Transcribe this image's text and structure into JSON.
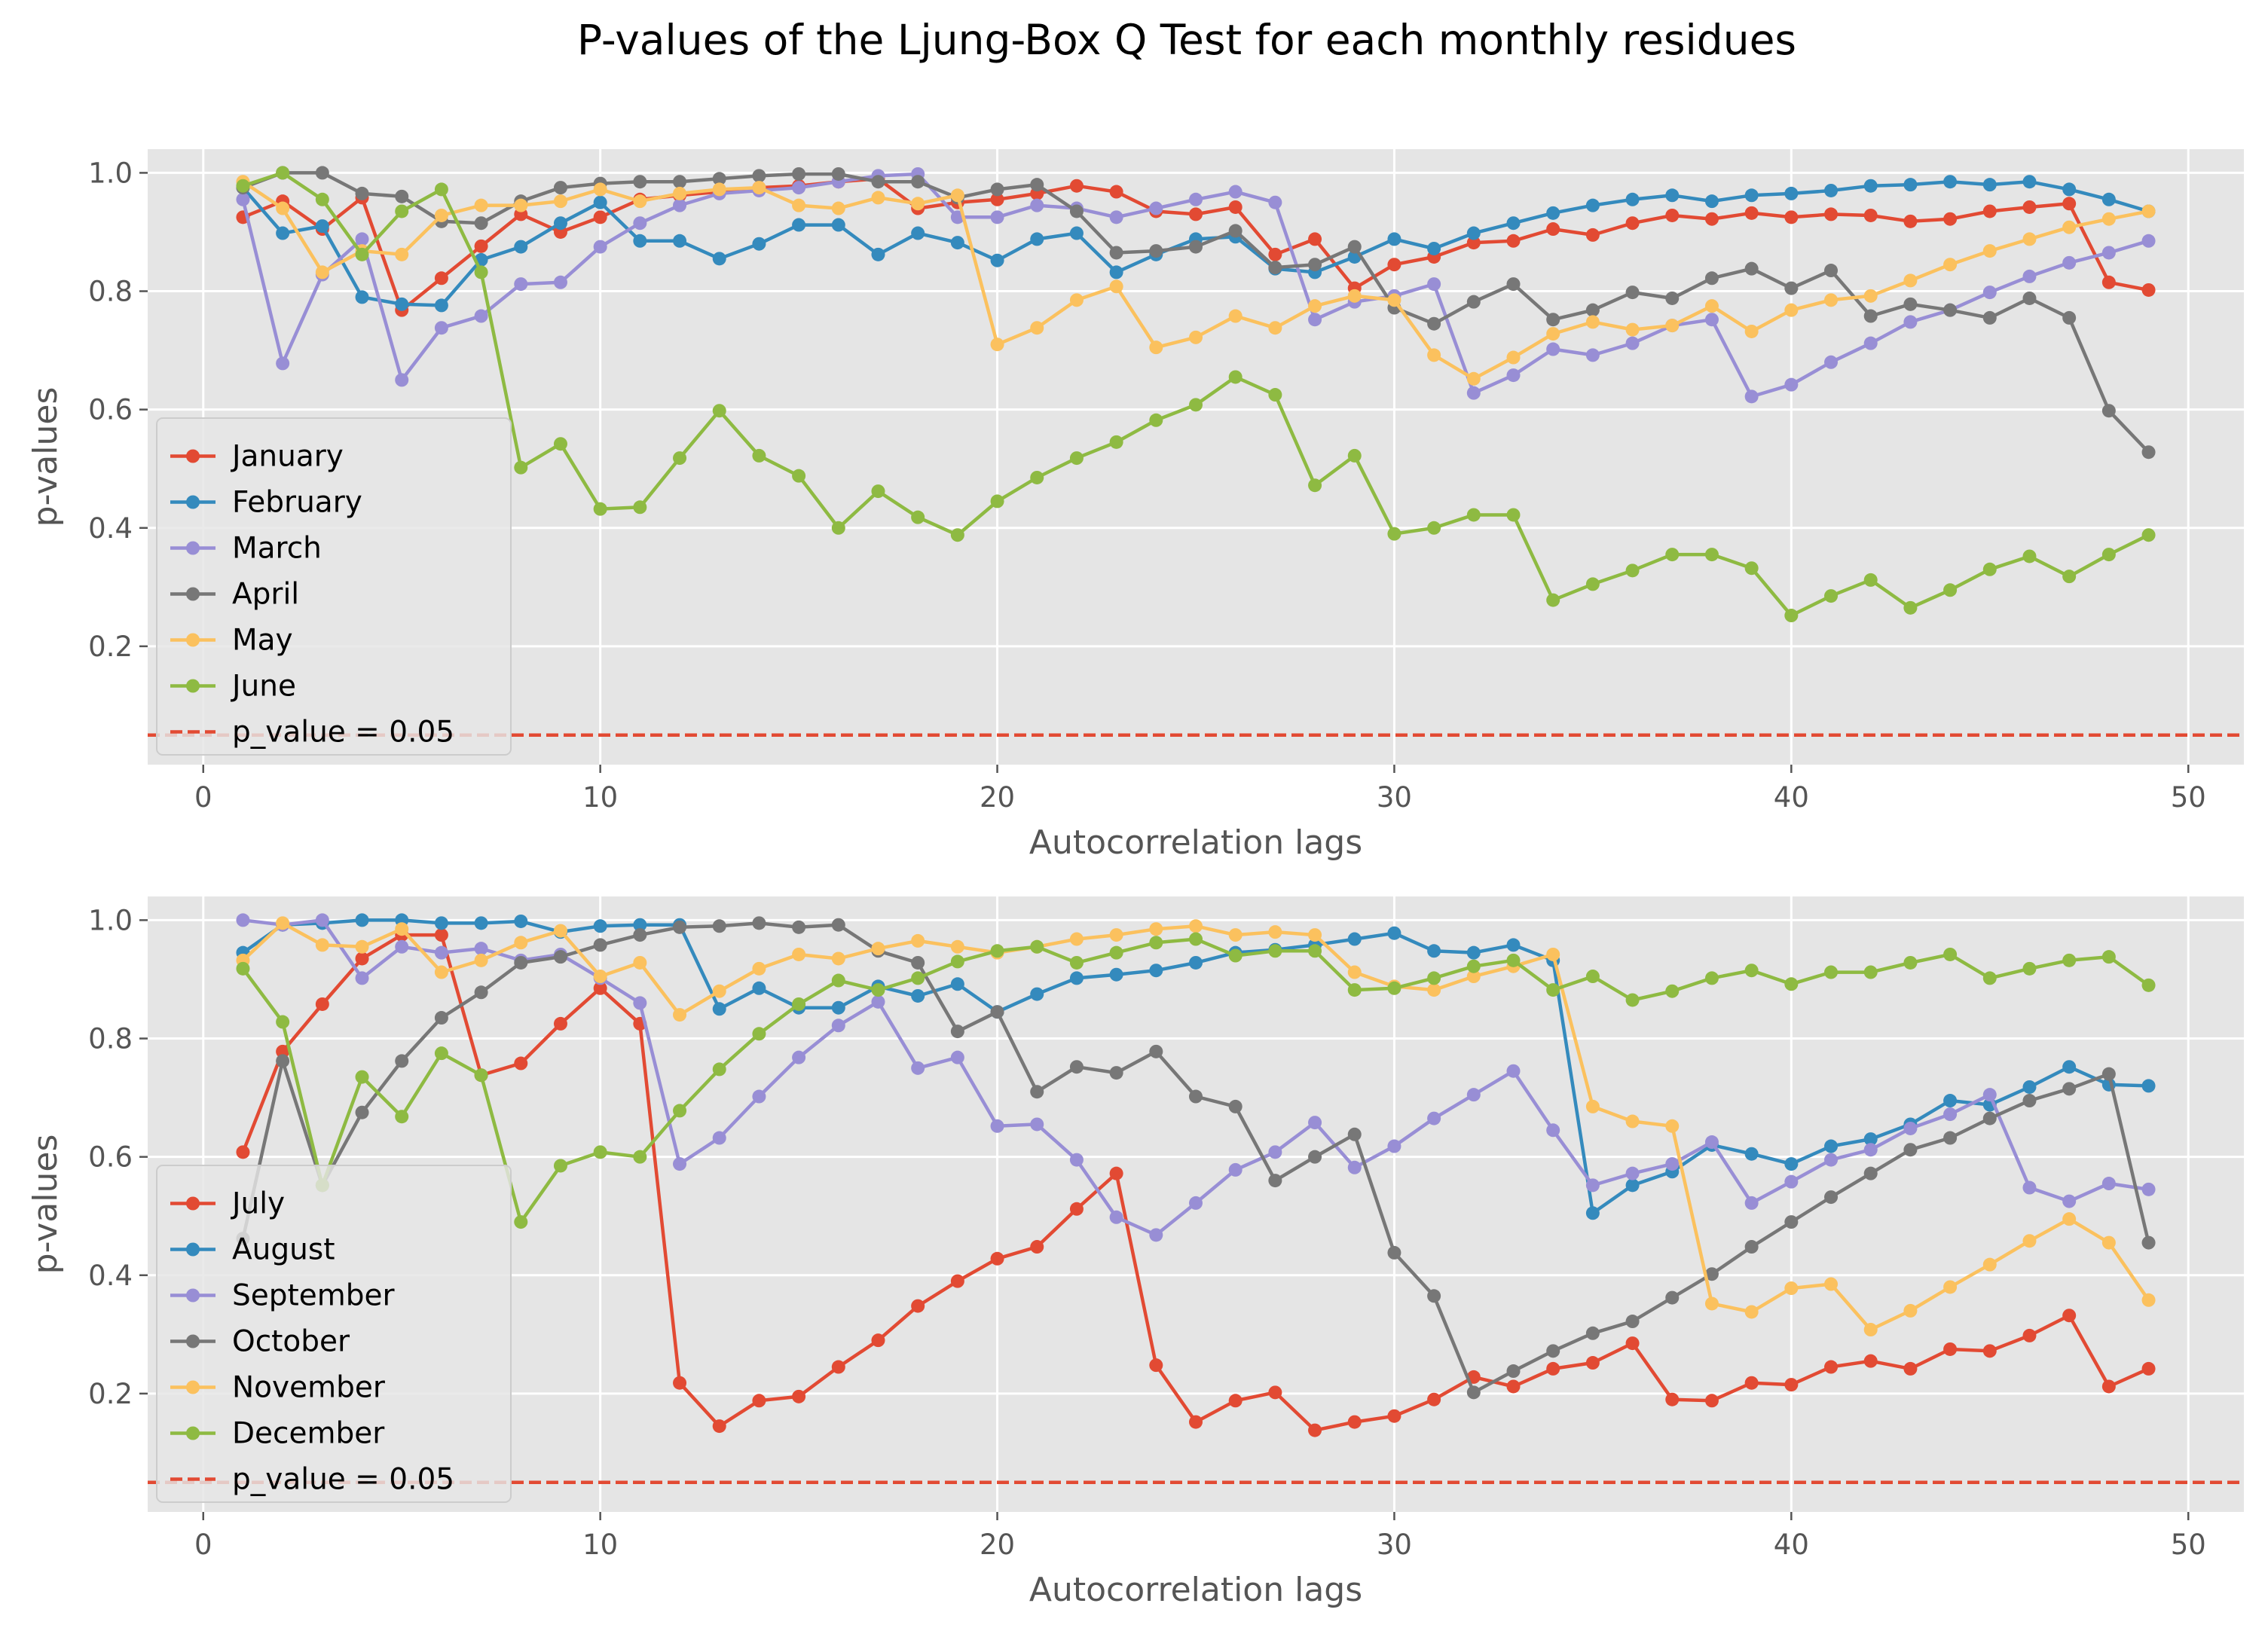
{
  "title": "P-values of the Ljung-Box Q Test for each monthly residues",
  "chart_data": [
    {
      "type": "line",
      "xlabel": "Autocorrelation lags",
      "ylabel": "p-values",
      "xlim": [
        -1.4,
        51.4
      ],
      "ylim": [
        0.0,
        1.04
      ],
      "xticks": [
        0,
        10,
        20,
        30,
        40,
        50
      ],
      "yticks": [
        0.2,
        0.4,
        0.6,
        0.8,
        1.0
      ],
      "grid": true,
      "legend_position": "lower-left",
      "threshold": {
        "label": "p_value = 0.05",
        "value": 0.05,
        "color": "#E24A33"
      },
      "series": [
        {
          "name": "January",
          "color": "#E24A33",
          "values": [
            0.925,
            0.952,
            0.905,
            0.958,
            0.768,
            0.822,
            0.876,
            0.93,
            0.9,
            0.925,
            0.955,
            0.962,
            0.968,
            0.975,
            0.978,
            0.985,
            0.99,
            0.94,
            0.95,
            0.955,
            0.965,
            0.978,
            0.968,
            0.935,
            0.93,
            0.942,
            0.862,
            0.888,
            0.805,
            0.845,
            0.858,
            0.882,
            0.885,
            0.905,
            0.895,
            0.915,
            0.928,
            0.922,
            0.932,
            0.925,
            0.93,
            0.928,
            0.918,
            0.922,
            0.935,
            0.942,
            0.948,
            0.815,
            0.802
          ]
        },
        {
          "name": "February",
          "color": "#348ABD",
          "values": [
            0.975,
            0.898,
            0.91,
            0.79,
            0.778,
            0.776,
            0.853,
            0.875,
            0.915,
            0.95,
            0.885,
            0.885,
            0.855,
            0.88,
            0.912,
            0.912,
            0.862,
            0.898,
            0.882,
            0.852,
            0.888,
            0.898,
            0.832,
            0.862,
            0.888,
            0.892,
            0.838,
            0.832,
            0.858,
            0.888,
            0.872,
            0.898,
            0.915,
            0.932,
            0.945,
            0.955,
            0.962,
            0.952,
            0.962,
            0.965,
            0.97,
            0.978,
            0.98,
            0.985,
            0.98,
            0.985,
            0.972,
            0.955,
            0.935
          ]
        },
        {
          "name": "March",
          "color": "#988ED5",
          "values": [
            0.955,
            0.678,
            0.828,
            0.888,
            0.65,
            0.738,
            0.758,
            0.812,
            0.815,
            0.875,
            0.915,
            0.945,
            0.965,
            0.97,
            0.975,
            0.985,
            0.995,
            0.998,
            0.925,
            0.925,
            0.945,
            0.94,
            0.925,
            0.94,
            0.955,
            0.968,
            0.95,
            0.752,
            0.782,
            0.792,
            0.812,
            0.628,
            0.658,
            0.702,
            0.692,
            0.712,
            0.742,
            0.752,
            0.622,
            0.642,
            0.68,
            0.712,
            0.748,
            0.768,
            0.798,
            0.825,
            0.848,
            0.865,
            0.885
          ]
        },
        {
          "name": "April",
          "color": "#777777",
          "values": [
            0.975,
            1.0,
            1.0,
            0.965,
            0.96,
            0.918,
            0.915,
            0.952,
            0.975,
            0.982,
            0.985,
            0.985,
            0.99,
            0.995,
            0.998,
            0.998,
            0.985,
            0.985,
            0.958,
            0.972,
            0.98,
            0.935,
            0.865,
            0.868,
            0.875,
            0.902,
            0.84,
            0.845,
            0.875,
            0.772,
            0.745,
            0.782,
            0.812,
            0.752,
            0.768,
            0.798,
            0.788,
            0.822,
            0.838,
            0.805,
            0.835,
            0.758,
            0.778,
            0.768,
            0.755,
            0.788,
            0.755,
            0.598,
            0.528
          ]
        },
        {
          "name": "May",
          "color": "#FBC15E",
          "values": [
            0.985,
            0.94,
            0.832,
            0.868,
            0.862,
            0.928,
            0.945,
            0.945,
            0.952,
            0.972,
            0.952,
            0.965,
            0.972,
            0.975,
            0.945,
            0.94,
            0.958,
            0.948,
            0.962,
            0.71,
            0.738,
            0.785,
            0.808,
            0.705,
            0.722,
            0.758,
            0.738,
            0.775,
            0.792,
            0.785,
            0.692,
            0.652,
            0.688,
            0.728,
            0.748,
            0.735,
            0.742,
            0.775,
            0.732,
            0.768,
            0.785,
            0.792,
            0.818,
            0.845,
            0.868,
            0.888,
            0.908,
            0.922,
            0.935
          ]
        },
        {
          "name": "June",
          "color": "#8EBA42",
          "values": [
            0.978,
            1.0,
            0.955,
            0.862,
            0.935,
            0.972,
            0.832,
            0.502,
            0.542,
            0.432,
            0.435,
            0.518,
            0.598,
            0.522,
            0.488,
            0.4,
            0.462,
            0.418,
            0.388,
            0.445,
            0.485,
            0.518,
            0.545,
            0.582,
            0.608,
            0.655,
            0.625,
            0.472,
            0.522,
            0.39,
            0.4,
            0.422,
            0.422,
            0.278,
            0.305,
            0.328,
            0.355,
            0.355,
            0.332,
            0.252,
            0.285,
            0.312,
            0.265,
            0.295,
            0.33,
            0.352,
            0.318,
            0.355,
            0.388
          ]
        }
      ]
    },
    {
      "type": "line",
      "xlabel": "Autocorrelation lags",
      "ylabel": "p-values",
      "xlim": [
        -1.4,
        51.4
      ],
      "ylim": [
        0.0,
        1.04
      ],
      "xticks": [
        0,
        10,
        20,
        30,
        40,
        50
      ],
      "yticks": [
        0.2,
        0.4,
        0.6,
        0.8,
        1.0
      ],
      "grid": true,
      "legend_position": "lower-left",
      "threshold": {
        "label": "p_value = 0.05",
        "value": 0.05,
        "color": "#E24A33"
      },
      "series": [
        {
          "name": "July",
          "color": "#E24A33",
          "values": [
            0.608,
            0.778,
            0.858,
            0.935,
            0.975,
            0.975,
            0.738,
            0.758,
            0.825,
            0.885,
            0.825,
            0.218,
            0.145,
            0.188,
            0.195,
            0.245,
            0.29,
            0.348,
            0.39,
            0.428,
            0.448,
            0.512,
            0.572,
            0.248,
            0.152,
            0.188,
            0.202,
            0.138,
            0.152,
            0.162,
            0.19,
            0.228,
            0.212,
            0.242,
            0.252,
            0.285,
            0.19,
            0.188,
            0.218,
            0.215,
            0.245,
            0.255,
            0.242,
            0.275,
            0.272,
            0.298,
            0.332,
            0.212,
            0.242
          ]
        },
        {
          "name": "August",
          "color": "#348ABD",
          "values": [
            0.945,
            0.992,
            0.995,
            1.0,
            1.0,
            0.995,
            0.995,
            0.998,
            0.98,
            0.99,
            0.992,
            0.992,
            0.85,
            0.885,
            0.852,
            0.852,
            0.888,
            0.872,
            0.892,
            0.845,
            0.875,
            0.902,
            0.908,
            0.915,
            0.928,
            0.945,
            0.95,
            0.958,
            0.968,
            0.978,
            0.948,
            0.945,
            0.958,
            0.932,
            0.505,
            0.552,
            0.575,
            0.62,
            0.605,
            0.588,
            0.618,
            0.63,
            0.655,
            0.695,
            0.688,
            0.718,
            0.752,
            0.722,
            0.72
          ]
        },
        {
          "name": "September",
          "color": "#988ED5",
          "values": [
            1.0,
            0.992,
            1.0,
            0.902,
            0.955,
            0.945,
            0.952,
            0.932,
            0.942,
            0.902,
            0.86,
            0.588,
            0.632,
            0.702,
            0.768,
            0.822,
            0.862,
            0.75,
            0.768,
            0.652,
            0.655,
            0.595,
            0.498,
            0.468,
            0.522,
            0.578,
            0.608,
            0.658,
            0.582,
            0.618,
            0.665,
            0.705,
            0.745,
            0.645,
            0.552,
            0.572,
            0.588,
            0.625,
            0.522,
            0.558,
            0.595,
            0.612,
            0.648,
            0.672,
            0.705,
            0.548,
            0.525,
            0.555,
            0.545
          ]
        },
        {
          "name": "October",
          "color": "#777777",
          "values": [
            0.462,
            0.762,
            0.552,
            0.675,
            0.762,
            0.835,
            0.878,
            0.928,
            0.938,
            0.958,
            0.975,
            0.988,
            0.99,
            0.995,
            0.988,
            0.992,
            0.948,
            0.928,
            0.812,
            0.845,
            0.71,
            0.752,
            0.742,
            0.778,
            0.702,
            0.685,
            0.56,
            0.6,
            0.638,
            0.438,
            0.365,
            0.202,
            0.238,
            0.272,
            0.302,
            0.322,
            0.362,
            0.402,
            0.448,
            0.49,
            0.532,
            0.572,
            0.612,
            0.632,
            0.665,
            0.695,
            0.715,
            0.74,
            0.455
          ]
        },
        {
          "name": "November",
          "color": "#FBC15E",
          "values": [
            0.932,
            0.995,
            0.958,
            0.955,
            0.985,
            0.912,
            0.932,
            0.962,
            0.982,
            0.905,
            0.928,
            0.84,
            0.88,
            0.918,
            0.942,
            0.935,
            0.952,
            0.965,
            0.955,
            0.945,
            0.955,
            0.968,
            0.975,
            0.985,
            0.99,
            0.975,
            0.98,
            0.975,
            0.912,
            0.888,
            0.882,
            0.905,
            0.922,
            0.942,
            0.685,
            0.66,
            0.652,
            0.352,
            0.338,
            0.378,
            0.385,
            0.308,
            0.34,
            0.38,
            0.418,
            0.458,
            0.495,
            0.455,
            0.358
          ]
        },
        {
          "name": "December",
          "color": "#8EBA42",
          "values": [
            0.918,
            0.828,
            0.552,
            0.735,
            0.668,
            0.775,
            0.738,
            0.49,
            0.585,
            0.608,
            0.6,
            0.678,
            0.748,
            0.808,
            0.858,
            0.898,
            0.882,
            0.902,
            0.93,
            0.948,
            0.955,
            0.928,
            0.945,
            0.962,
            0.968,
            0.94,
            0.948,
            0.948,
            0.882,
            0.885,
            0.902,
            0.922,
            0.932,
            0.882,
            0.905,
            0.865,
            0.88,
            0.902,
            0.915,
            0.892,
            0.912,
            0.912,
            0.928,
            0.942,
            0.902,
            0.918,
            0.932,
            0.938,
            0.89
          ]
        }
      ]
    }
  ]
}
